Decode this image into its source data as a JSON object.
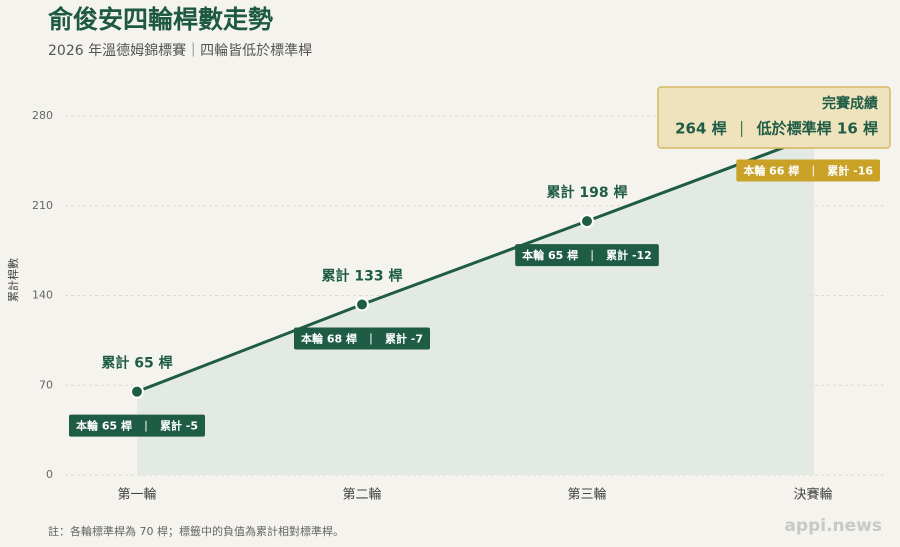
{
  "chart_data": {
    "type": "line",
    "title": "俞俊安四輪桿數走勢",
    "subtitle": "2026 年溫德姆錦標賽｜四輪皆低於標準桿",
    "y_label": "累計桿數",
    "categories": [
      "第一輪",
      "第二輪",
      "第三輪",
      "決賽輪"
    ],
    "values": [
      65,
      133,
      198,
      264
    ],
    "value_labels": [
      "累計 65 桿",
      "累計 133 桿",
      "累計 198 桿",
      null
    ],
    "round_labels": [
      "本輪 65 桿",
      "本輪 68 桿",
      "本輪 65 桿",
      "本輪 66 桿"
    ],
    "cumulative_labels": [
      "累計 -5",
      "累計 -7",
      "累計 -12",
      "累計 -16"
    ],
    "final_callout": {
      "title": "完賽成績",
      "total": "264 桿",
      "detail": "低於標準桿 16 桿"
    },
    "ylim": [
      0,
      280
    ],
    "yticks": [
      0,
      70,
      140,
      210,
      280
    ],
    "grid": true,
    "color": "#1f5c45",
    "area_color": "#dfe7e0",
    "highlight_color": "#c9a227",
    "footnote": "註：各輪標準桿為 70 桿；標籤中的負值為累計相對標準桿。",
    "source": "appi.news"
  }
}
